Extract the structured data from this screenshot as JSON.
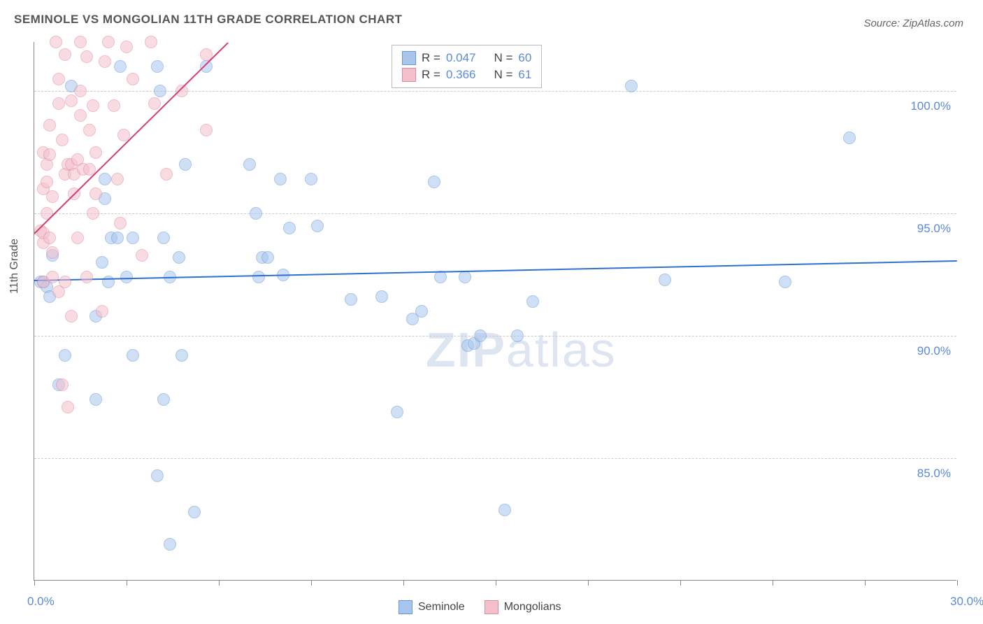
{
  "title": "SEMINOLE VS MONGOLIAN 11TH GRADE CORRELATION CHART",
  "source": "Source: ZipAtlas.com",
  "y_axis_title": "11th Grade",
  "watermark": "ZIPatlas",
  "chart": {
    "type": "scatter",
    "background": "#ffffff",
    "grid_color": "#cccccc",
    "axis_color": "#888888",
    "xlim": [
      0,
      30
    ],
    "ylim": [
      80,
      102
    ],
    "x_ticks": [
      0,
      3,
      6,
      9,
      12,
      15,
      18,
      21,
      24,
      27,
      30
    ],
    "x_labels_shown": {
      "0": "0.0%",
      "30": "30.0%"
    },
    "y_gridlines": [
      85,
      90,
      95,
      100
    ],
    "y_labels": {
      "85": "85.0%",
      "90": "90.0%",
      "95": "95.0%",
      "100": "100.0%"
    },
    "label_color": "#5b8ad6",
    "label_fontsize": 17,
    "point_radius": 9,
    "point_opacity": 0.55,
    "series": [
      {
        "name": "Seminole",
        "color_fill": "#a8c6ed",
        "color_stroke": "#6698d8",
        "R": "0.047",
        "N": "60",
        "trend": {
          "x1": 0,
          "y1": 92.3,
          "x2": 30,
          "y2": 93.1,
          "color": "#2f6fd0",
          "width": 2
        },
        "points": [
          [
            0.2,
            92.2
          ],
          [
            0.3,
            92.2
          ],
          [
            0.4,
            92.0
          ],
          [
            0.5,
            91.6
          ],
          [
            0.6,
            93.3
          ],
          [
            0.8,
            88.0
          ],
          [
            1.0,
            89.2
          ],
          [
            1.2,
            100.2
          ],
          [
            2.0,
            87.4
          ],
          [
            2.0,
            90.8
          ],
          [
            2.2,
            93.0
          ],
          [
            2.3,
            96.4
          ],
          [
            2.3,
            95.6
          ],
          [
            2.4,
            92.2
          ],
          [
            2.5,
            94.0
          ],
          [
            2.7,
            94.0
          ],
          [
            2.8,
            101.0
          ],
          [
            3.0,
            92.4
          ],
          [
            3.2,
            89.2
          ],
          [
            3.2,
            94.0
          ],
          [
            4.0,
            101.0
          ],
          [
            4.0,
            84.3
          ],
          [
            4.1,
            100.0
          ],
          [
            4.2,
            87.4
          ],
          [
            4.2,
            94.0
          ],
          [
            4.4,
            92.4
          ],
          [
            4.4,
            81.5
          ],
          [
            4.7,
            93.2
          ],
          [
            4.8,
            89.2
          ],
          [
            4.9,
            97.0
          ],
          [
            5.2,
            82.8
          ],
          [
            5.6,
            101.0
          ],
          [
            7.0,
            97.0
          ],
          [
            7.2,
            95.0
          ],
          [
            7.3,
            92.4
          ],
          [
            7.4,
            93.2
          ],
          [
            7.6,
            93.2
          ],
          [
            8.0,
            96.4
          ],
          [
            8.1,
            92.5
          ],
          [
            8.3,
            94.4
          ],
          [
            9.0,
            96.4
          ],
          [
            9.2,
            94.5
          ],
          [
            10.3,
            91.5
          ],
          [
            11.3,
            91.6
          ],
          [
            11.8,
            86.9
          ],
          [
            12.3,
            90.7
          ],
          [
            12.6,
            91.0
          ],
          [
            13.0,
            96.3
          ],
          [
            13.2,
            92.4
          ],
          [
            14.0,
            92.4
          ],
          [
            14.1,
            89.6
          ],
          [
            14.3,
            89.7
          ],
          [
            14.5,
            90.0
          ],
          [
            15.3,
            82.9
          ],
          [
            15.7,
            90.0
          ],
          [
            16.2,
            91.4
          ],
          [
            19.4,
            100.2
          ],
          [
            20.5,
            92.3
          ],
          [
            24.4,
            92.2
          ],
          [
            26.5,
            98.1
          ]
        ]
      },
      {
        "name": "Mongolians",
        "color_fill": "#f4c0cc",
        "color_stroke": "#e08aa0",
        "R": "0.366",
        "N": "61",
        "trend": {
          "x1": 0,
          "y1": 94.2,
          "x2": 6.3,
          "y2": 102,
          "color": "#d23f77",
          "width": 2
        },
        "points": [
          [
            0.2,
            94.3
          ],
          [
            0.3,
            93.8
          ],
          [
            0.3,
            94.2
          ],
          [
            0.3,
            96.0
          ],
          [
            0.3,
            97.5
          ],
          [
            0.3,
            92.2
          ],
          [
            0.4,
            95.0
          ],
          [
            0.4,
            96.3
          ],
          [
            0.4,
            97.0
          ],
          [
            0.5,
            97.4
          ],
          [
            0.5,
            98.6
          ],
          [
            0.5,
            94.0
          ],
          [
            0.6,
            95.7
          ],
          [
            0.6,
            93.4
          ],
          [
            0.6,
            92.4
          ],
          [
            0.7,
            102.0
          ],
          [
            0.8,
            99.5
          ],
          [
            0.8,
            100.5
          ],
          [
            0.8,
            91.8
          ],
          [
            0.9,
            98.0
          ],
          [
            0.9,
            88.0
          ],
          [
            1.0,
            96.6
          ],
          [
            1.0,
            101.5
          ],
          [
            1.0,
            92.2
          ],
          [
            1.1,
            97.0
          ],
          [
            1.1,
            87.1
          ],
          [
            1.2,
            99.6
          ],
          [
            1.2,
            97.0
          ],
          [
            1.2,
            90.8
          ],
          [
            1.3,
            95.8
          ],
          [
            1.3,
            96.6
          ],
          [
            1.4,
            97.2
          ],
          [
            1.4,
            94.0
          ],
          [
            1.5,
            102.0
          ],
          [
            1.5,
            100.0
          ],
          [
            1.5,
            99.0
          ],
          [
            1.6,
            96.8
          ],
          [
            1.7,
            92.4
          ],
          [
            1.7,
            101.4
          ],
          [
            1.8,
            96.8
          ],
          [
            1.8,
            98.4
          ],
          [
            1.9,
            99.4
          ],
          [
            1.9,
            95.0
          ],
          [
            2.0,
            97.5
          ],
          [
            2.0,
            95.8
          ],
          [
            2.2,
            91.0
          ],
          [
            2.3,
            101.2
          ],
          [
            2.4,
            102.0
          ],
          [
            2.6,
            99.4
          ],
          [
            2.7,
            96.4
          ],
          [
            2.8,
            94.6
          ],
          [
            2.9,
            98.2
          ],
          [
            3.0,
            101.8
          ],
          [
            3.2,
            100.5
          ],
          [
            3.5,
            93.3
          ],
          [
            3.8,
            102.0
          ],
          [
            3.9,
            99.5
          ],
          [
            4.3,
            96.6
          ],
          [
            4.8,
            100.0
          ],
          [
            5.6,
            98.4
          ],
          [
            5.6,
            101.5
          ]
        ]
      }
    ]
  },
  "legend_top": {
    "rows": [
      {
        "R_label": "R =",
        "R": "0.047",
        "N_label": "N =",
        "N": "60"
      },
      {
        "R_label": "R =",
        "R": "0.366",
        "N_label": "N =",
        "N": "61"
      }
    ]
  },
  "legend_bottom": [
    {
      "label": "Seminole"
    },
    {
      "label": "Mongolians"
    }
  ]
}
